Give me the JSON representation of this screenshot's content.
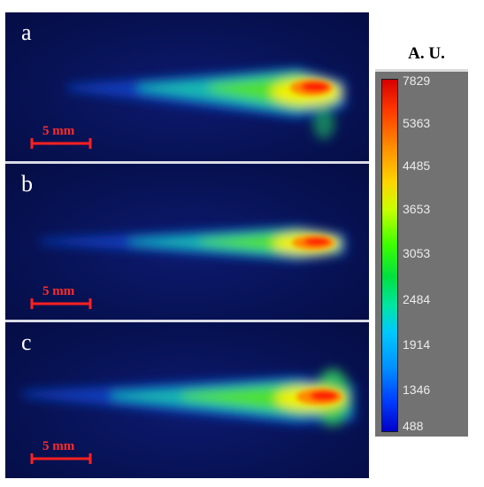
{
  "panels": [
    {
      "label": "a",
      "scale_label": "5 mm"
    },
    {
      "label": "b",
      "scale_label": "5 mm"
    },
    {
      "label": "c",
      "scale_label": "5 mm"
    }
  ],
  "colorbar": {
    "title": "A. U.",
    "ticks": [
      "7829",
      "5363",
      "4485",
      "3653",
      "3053",
      "2484",
      "1914",
      "1346",
      "488"
    ]
  }
}
